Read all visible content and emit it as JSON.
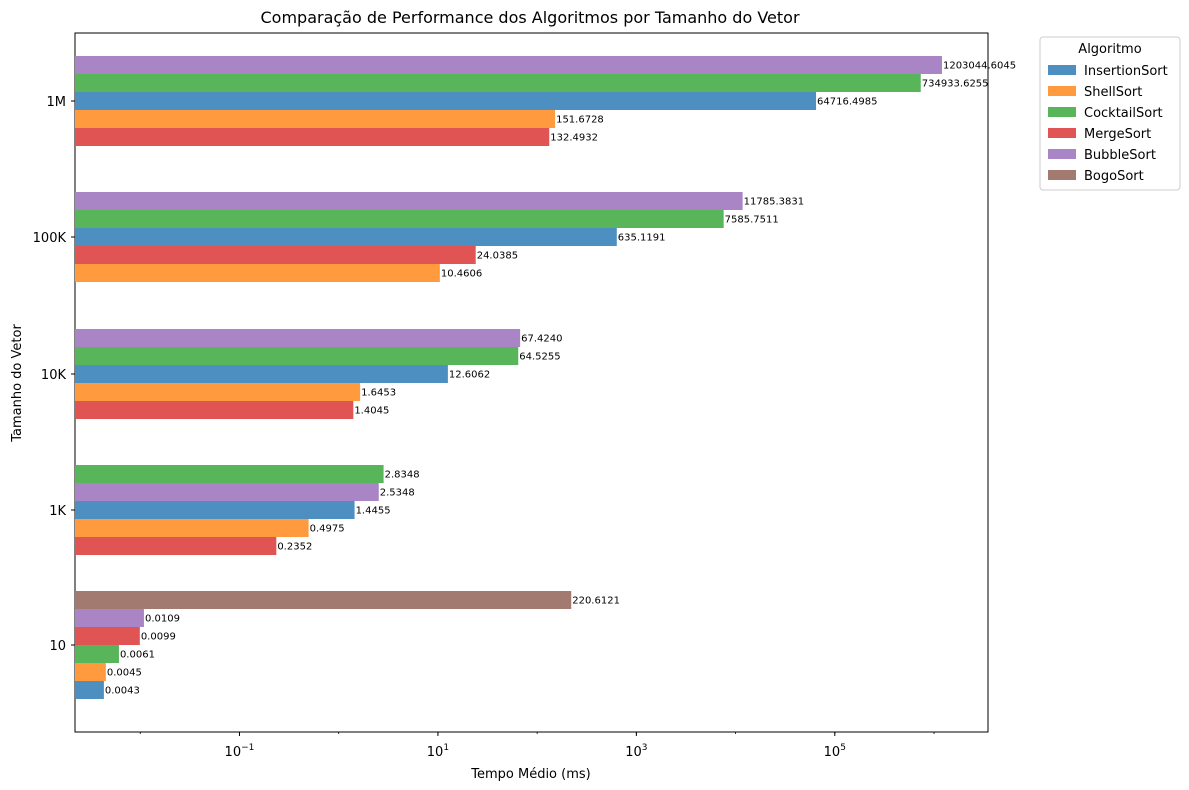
{
  "chart_data": {
    "type": "bar",
    "orientation": "horizontal",
    "title": "Comparação de Performance dos Algoritmos por Tamanho do Vetor",
    "xlabel": "Tempo Médio (ms)",
    "ylabel": "Tamanho do Vetor",
    "x_scale": "log",
    "xlim": [
      0.0022,
      3500000
    ],
    "x_ticks": [
      {
        "value": 0.1,
        "base": "10",
        "exp": "−1"
      },
      {
        "value": 10,
        "base": "10",
        "exp": "1"
      },
      {
        "value": 1000,
        "base": "10",
        "exp": "3"
      },
      {
        "value": 100000,
        "base": "10",
        "exp": "5"
      }
    ],
    "categories": [
      "10",
      "1K",
      "10K",
      "100K",
      "1M"
    ],
    "legend": {
      "title": "Algoritmo",
      "placement": "outside-top-right",
      "entries": [
        {
          "name": "InsertionSort",
          "color": "#4c8fc0"
        },
        {
          "name": "ShellSort",
          "color": "#ff9a3f"
        },
        {
          "name": "CocktailSort",
          "color": "#58b55a"
        },
        {
          "name": "MergeSort",
          "color": "#e05453"
        },
        {
          "name": "BubbleSort",
          "color": "#aa85c6"
        },
        {
          "name": "BogoSort",
          "color": "#a27a6f"
        }
      ]
    },
    "groups": [
      {
        "category": "10",
        "bars": [
          {
            "series": "InsertionSort",
            "value": 0.0043,
            "label": "0.0043"
          },
          {
            "series": "ShellSort",
            "value": 0.0045,
            "label": "0.0045"
          },
          {
            "series": "CocktailSort",
            "value": 0.0061,
            "label": "0.0061"
          },
          {
            "series": "MergeSort",
            "value": 0.0099,
            "label": "0.0099"
          },
          {
            "series": "BubbleSort",
            "value": 0.0109,
            "label": "0.0109"
          },
          {
            "series": "BogoSort",
            "value": 220.6121,
            "label": "220.6121"
          }
        ]
      },
      {
        "category": "1K",
        "bars": [
          {
            "series": "MergeSort",
            "value": 0.2352,
            "label": "0.2352"
          },
          {
            "series": "ShellSort",
            "value": 0.4975,
            "label": "0.4975"
          },
          {
            "series": "InsertionSort",
            "value": 1.4455,
            "label": "1.4455"
          },
          {
            "series": "BubbleSort",
            "value": 2.5348,
            "label": "2.5348"
          },
          {
            "series": "CocktailSort",
            "value": 2.8348,
            "label": "2.8348"
          }
        ]
      },
      {
        "category": "10K",
        "bars": [
          {
            "series": "MergeSort",
            "value": 1.4045,
            "label": "1.4045"
          },
          {
            "series": "ShellSort",
            "value": 1.6453,
            "label": "1.6453"
          },
          {
            "series": "InsertionSort",
            "value": 12.6062,
            "label": "12.6062"
          },
          {
            "series": "CocktailSort",
            "value": 64.5255,
            "label": "64.5255"
          },
          {
            "series": "BubbleSort",
            "value": 67.424,
            "label": "67.4240"
          }
        ]
      },
      {
        "category": "100K",
        "bars": [
          {
            "series": "ShellSort",
            "value": 10.4606,
            "label": "10.4606"
          },
          {
            "series": "MergeSort",
            "value": 24.0385,
            "label": "24.0385"
          },
          {
            "series": "InsertionSort",
            "value": 635.1191,
            "label": "635.1191"
          },
          {
            "series": "CocktailSort",
            "value": 7585.7511,
            "label": "7585.7511"
          },
          {
            "series": "BubbleSort",
            "value": 11785.3831,
            "label": "11785.3831"
          }
        ]
      },
      {
        "category": "1M",
        "bars": [
          {
            "series": "MergeSort",
            "value": 132.4932,
            "label": "132.4932"
          },
          {
            "series": "ShellSort",
            "value": 151.6728,
            "label": "151.6728"
          },
          {
            "series": "InsertionSort",
            "value": 64716.4985,
            "label": "64716.4985"
          },
          {
            "series": "CocktailSort",
            "value": 734933.6255,
            "label": "734933.6255"
          },
          {
            "series": "BubbleSort",
            "value": 1203044.6045,
            "label": "1203044.6045"
          }
        ]
      }
    ],
    "grid": false
  }
}
